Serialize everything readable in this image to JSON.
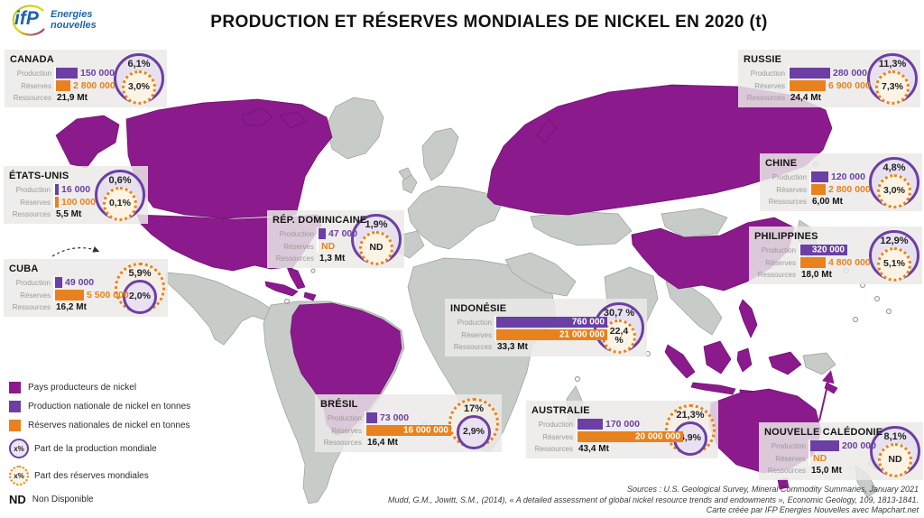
{
  "title": "PRODUCTION ET RÉSERVES MONDIALES DE NICKEL EN 2020  (t)",
  "logo": {
    "mark": "ifP",
    "name_line1": "Energies",
    "name_line2": "nouvelles"
  },
  "row_labels": {
    "production": "Production",
    "reserves": "Réserves",
    "resources": "Ressources"
  },
  "colors": {
    "producer_country": "#8b1a8c",
    "production_bar": "#6b3fa3",
    "reserves_bar": "#e8821e",
    "map_land": "#c7ccc8",
    "box_background": "#ebeae8"
  },
  "scales": {
    "production_max": 760000,
    "reserves_max": 21000000
  },
  "countries": [
    {
      "id": "canada",
      "name": "CANADA",
      "production": 150000,
      "production_label": "150 000",
      "reserves": 2800000,
      "reserves_label": "2 800 000",
      "resources_label": "21,9 Mt",
      "production_share": "6,1%",
      "reserves_share": "3,0%",
      "outer": "production"
    },
    {
      "id": "russie",
      "name": "RUSSIE",
      "production": 280000,
      "production_label": "280 000",
      "reserves": 6900000,
      "reserves_label": "6 900 000",
      "resources_label": "24,4 Mt",
      "production_share": "11,3%",
      "reserves_share": "7,3%",
      "outer": "production"
    },
    {
      "id": "etats-unis",
      "name": "ÉTATS-UNIS",
      "production": 16000,
      "production_label": "16 000",
      "reserves": 100000,
      "reserves_label": "100 000",
      "resources_label": "5,5 Mt",
      "production_share": "0,6%",
      "reserves_share": "0,1%",
      "outer": "production"
    },
    {
      "id": "cuba",
      "name": "CUBA",
      "production": 49000,
      "production_label": "49 000",
      "reserves": 5500000,
      "reserves_label": "5 500 000",
      "resources_label": "16,2 Mt",
      "production_share": "2,0%",
      "reserves_share": "5,9%",
      "outer": "reserves"
    },
    {
      "id": "rep-dominicaine",
      "name": "RÉP. DOMINICAINE",
      "production": 47000,
      "production_label": "47 000",
      "reserves": null,
      "reserves_label": "ND",
      "resources_label": "1,3 Mt",
      "production_share": "1,9%",
      "reserves_share": "ND",
      "outer": "production"
    },
    {
      "id": "chine",
      "name": "CHINE",
      "production": 120000,
      "production_label": "120 000",
      "reserves": 2800000,
      "reserves_label": "2 800 000",
      "resources_label": "6,00 Mt",
      "production_share": "4,8%",
      "reserves_share": "3,0%",
      "outer": "production"
    },
    {
      "id": "philippines",
      "name": "PHILIPPINES",
      "production": 320000,
      "production_label": "320 000",
      "reserves": 4800000,
      "reserves_label": "4 800 000",
      "resources_label": "18,0 Mt",
      "production_share": "12,9%",
      "reserves_share": "5,1%",
      "outer": "production"
    },
    {
      "id": "indonesie",
      "name": "INDONÉSIE",
      "production": 760000,
      "production_label": "760 000",
      "reserves": 21000000,
      "reserves_label": "21 000 000",
      "resources_label": "33,3 Mt",
      "production_share": "30,7 %",
      "reserves_share": "22,4 %",
      "outer": "production"
    },
    {
      "id": "bresil",
      "name": "BRÉSIL",
      "production": 73000,
      "production_label": "73 000",
      "reserves": 16000000,
      "reserves_label": "16 000 000",
      "resources_label": "16,4 Mt",
      "production_share": "2,9%",
      "reserves_share": "17%",
      "outer": "reserves"
    },
    {
      "id": "australie",
      "name": "AUSTRALIE",
      "production": 170000,
      "production_label": "170 000",
      "reserves": 20000000,
      "reserves_label": "20 000 000",
      "resources_label": "43,4 Mt",
      "production_share": "6,9%",
      "reserves_share": "21,3%",
      "outer": "reserves"
    },
    {
      "id": "nouvelle-caledonie",
      "name": "NOUVELLE CALÉDONIE",
      "production": 200000,
      "production_label": "200 000",
      "reserves": null,
      "reserves_label": "ND",
      "resources_label": "15,0 Mt",
      "production_share": "8,1%",
      "reserves_share": "ND",
      "outer": "production"
    }
  ],
  "legend": {
    "items": [
      {
        "label": "Pays producteurs de nickel"
      },
      {
        "label": "Production nationale de nickel en tonnes"
      },
      {
        "label": "Réserves nationales de nickel en tonnes"
      },
      {
        "symbol": "x%",
        "label": "Part de la production mondiale"
      },
      {
        "symbol": "x%",
        "label": "Part des réserves mondiales"
      },
      {
        "symbol": "ND",
        "label": "Non Disponible"
      }
    ]
  },
  "sources": {
    "line1": "Sources : U.S. Geological Survey,  Mineral Commodity Summaries, January 2021",
    "line2": "Mudd, G.M., Jowitt, S.M., (2014), «  A detailed assessment of global nickel resource trends and endowments », Economic Geology,  109, 1813-1841.",
    "line3": "Carte créée par IFP Energies Nouvelles avec Mapchart.net"
  }
}
